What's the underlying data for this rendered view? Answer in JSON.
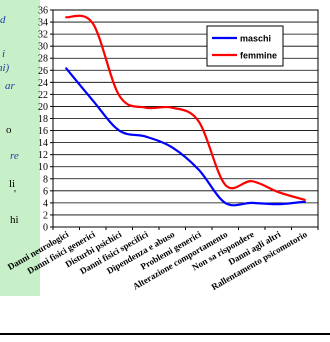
{
  "left_text_fragments": [
    {
      "text": "d",
      "style": "blue"
    },
    {
      "text": "i",
      "style": "blue"
    },
    {
      "text": "ni)",
      "style": "blue"
    },
    {
      "text": "ar",
      "style": "blue"
    },
    {
      "text": "o",
      "style": "black"
    },
    {
      "text": "re",
      "style": "blue"
    },
    {
      "text": "li",
      "style": "black"
    },
    {
      "text": "'",
      "style": "black"
    },
    {
      "text": "hi",
      "style": "black"
    }
  ],
  "chart_data": {
    "type": "line",
    "title": "",
    "xlabel": "",
    "ylabel": "",
    "ylim": [
      0,
      36
    ],
    "yticks": [
      0,
      2,
      4,
      6,
      8,
      10,
      12,
      14,
      16,
      18,
      20,
      22,
      24,
      26,
      28,
      30,
      32,
      34,
      36
    ],
    "grid": true,
    "legend_position": "top-right",
    "categories": [
      "Danni neurologici",
      "Danni fisici generici",
      "Disturbi psichici",
      "Danni fisici specifici",
      "Dipendenza e abuso",
      "Problemi generici",
      "Alterazione comportamento",
      "Non sa rispondere",
      "Danni agli altri",
      "Rallentamento psicomotorio"
    ],
    "series": [
      {
        "name": "maschi",
        "color": "#0000ff",
        "values": [
          26.3,
          21.0,
          16.0,
          15.0,
          13.2,
          9.5,
          4.0,
          4.0,
          3.8,
          4.2
        ]
      },
      {
        "name": "femmine",
        "color": "#ff0000",
        "values": [
          34.8,
          33.8,
          21.8,
          19.8,
          19.8,
          17.5,
          7.0,
          7.6,
          5.8,
          4.5
        ]
      }
    ]
  }
}
